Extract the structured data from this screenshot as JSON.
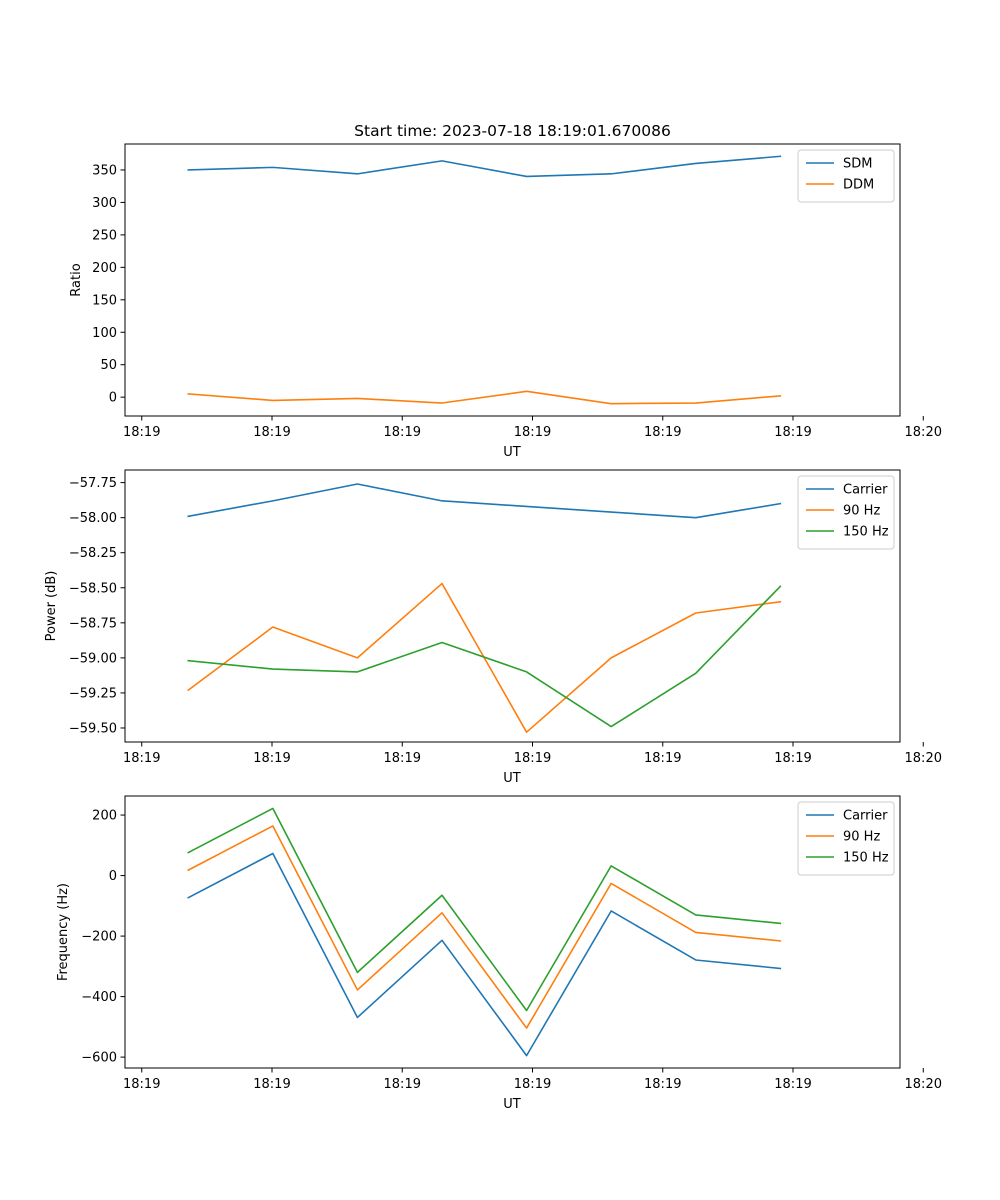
{
  "figure": {
    "title": "Start time: 2023-07-18 18:19:01.670086"
  },
  "colors": {
    "blue": "#1f77b4",
    "orange": "#ff7f0e",
    "green": "#2ca02c"
  },
  "chart_data": [
    {
      "type": "line",
      "title": "Start time: 2023-07-18 18:19:01.670086",
      "xlabel": "UT",
      "ylabel": "Ratio",
      "x": [
        1,
        2,
        3,
        4,
        5,
        6,
        7,
        8
      ],
      "xlim": [
        0.252,
        9.415
      ],
      "xticks": [
        0.45,
        1.99,
        3.53,
        5.07,
        6.61,
        8.15,
        9.69
      ],
      "xtick_labels": [
        "18:19",
        "18:19",
        "18:19",
        "18:19",
        "18:19",
        "18:19",
        "18:20"
      ],
      "ylim": [
        -29,
        390
      ],
      "yticks": [
        0,
        50,
        100,
        150,
        200,
        250,
        300,
        350
      ],
      "ytick_labels": [
        "0",
        "50",
        "100",
        "150",
        "200",
        "250",
        "300",
        "350"
      ],
      "legend_position": "top-right",
      "series": [
        {
          "name": "SDM",
          "color": "#1f77b4",
          "values": [
            350,
            354,
            344,
            364,
            340,
            344,
            360,
            371
          ]
        },
        {
          "name": "DDM",
          "color": "#ff7f0e",
          "values": [
            5,
            -5,
            -2,
            -9,
            9,
            -10,
            -9,
            2
          ]
        }
      ]
    },
    {
      "type": "line",
      "title": "",
      "xlabel": "UT",
      "ylabel": "Power (dB)",
      "x": [
        1,
        2,
        3,
        4,
        5,
        6,
        7,
        8
      ],
      "xlim": [
        0.252,
        9.415
      ],
      "xticks": [
        0.45,
        1.99,
        3.53,
        5.07,
        6.61,
        8.15,
        9.69
      ],
      "xtick_labels": [
        "18:19",
        "18:19",
        "18:19",
        "18:19",
        "18:19",
        "18:19",
        "18:20"
      ],
      "ylim": [
        -59.6,
        -57.66
      ],
      "yticks": [
        -59.5,
        -59.25,
        -59.0,
        -58.75,
        -58.5,
        -58.25,
        -58.0,
        -57.75
      ],
      "ytick_labels": [
        "−59.50",
        "−59.25",
        "−59.00",
        "−58.75",
        "−58.50",
        "−58.25",
        "−58.00",
        "−57.75"
      ],
      "legend_position": "top-right",
      "series": [
        {
          "name": "Carrier",
          "color": "#1f77b4",
          "values": [
            -57.99,
            -57.88,
            -57.76,
            -57.88,
            -57.92,
            -57.96,
            -58.0,
            -57.9
          ]
        },
        {
          "name": "90 Hz",
          "color": "#ff7f0e",
          "values": [
            -59.23,
            -58.78,
            -59.0,
            -58.47,
            -59.53,
            -59.0,
            -58.68,
            -58.6
          ]
        },
        {
          "name": "150 Hz",
          "color": "#2ca02c",
          "values": [
            -59.02,
            -59.08,
            -59.1,
            -58.89,
            -59.1,
            -59.49,
            -59.11,
            -58.49
          ]
        }
      ]
    },
    {
      "type": "line",
      "title": "",
      "xlabel": "UT",
      "ylabel": "Frequency (Hz)",
      "x": [
        1,
        2,
        3,
        4,
        5,
        6,
        7,
        8
      ],
      "xlim": [
        0.252,
        9.415
      ],
      "xticks": [
        0.45,
        1.99,
        3.53,
        5.07,
        6.61,
        8.15,
        9.69
      ],
      "xtick_labels": [
        "18:19",
        "18:19",
        "18:19",
        "18:19",
        "18:19",
        "18:19",
        "18:20"
      ],
      "ylim": [
        -636,
        263
      ],
      "yticks": [
        -600,
        -400,
        -200,
        0,
        200
      ],
      "ytick_labels": [
        "−600",
        "−400",
        "−200",
        "0",
        "200"
      ],
      "legend_position": "top-right",
      "series": [
        {
          "name": "Carrier",
          "color": "#1f77b4",
          "values": [
            -73,
            73,
            -469,
            -214,
            -595,
            -117,
            -279,
            -307
          ]
        },
        {
          "name": "90 Hz",
          "color": "#ff7f0e",
          "values": [
            18,
            164,
            -378,
            -123,
            -504,
            -26,
            -188,
            -216
          ]
        },
        {
          "name": "150 Hz",
          "color": "#2ca02c",
          "values": [
            76,
            222,
            -320,
            -65,
            -446,
            32,
            -130,
            -158
          ]
        }
      ]
    }
  ]
}
